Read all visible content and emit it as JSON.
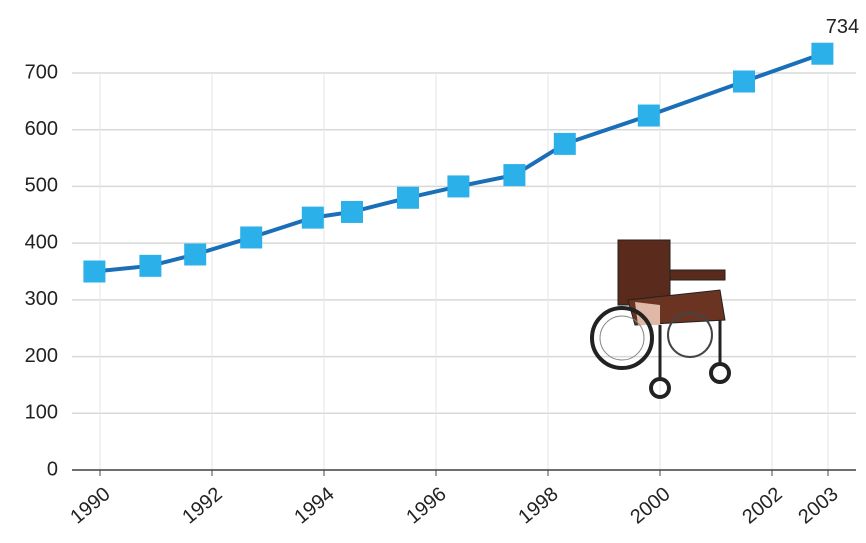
{
  "chart_data": {
    "type": "line",
    "x": [
      1989.9,
      1990.9,
      1991.7,
      1992.7,
      1993.8,
      1994.5,
      1995.5,
      1996.4,
      1997.4,
      1998.3,
      1999.8,
      2001.5,
      2002.9
    ],
    "series": [
      {
        "color": "#1a6fb8",
        "marker_color": "#2bb0ea",
        "values": [
          350,
          360,
          380,
          410,
          445,
          455,
          480,
          500,
          520,
          575,
          625,
          685,
          734
        ]
      }
    ],
    "annotation_index": 12,
    "xlim": [
      1989.5,
      2003.5
    ],
    "xticks": [
      1990,
      1992,
      1994,
      1996,
      1998,
      2000,
      2002,
      2003
    ],
    "ylim": [
      0,
      700
    ],
    "yticks": [
      0,
      100,
      200,
      300,
      400,
      500,
      600,
      700
    ],
    "grid": true
  }
}
